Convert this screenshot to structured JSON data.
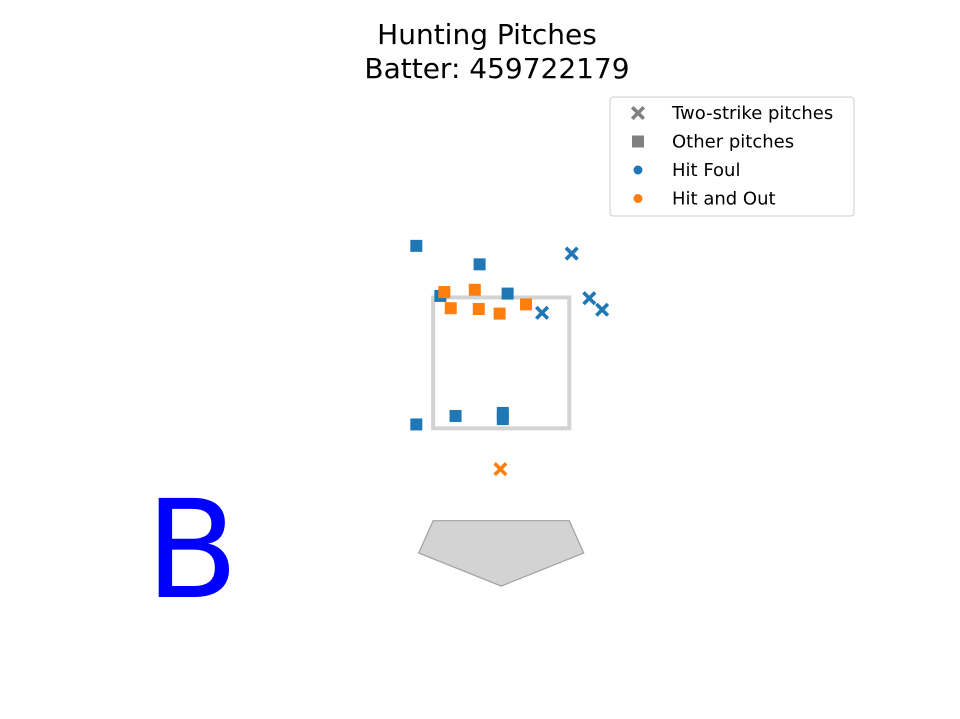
{
  "chart_data": {
    "type": "scatter",
    "title_lines": [
      "Hunting Pitches",
      "Batter: 459722179"
    ],
    "xlabel": "",
    "ylabel": "",
    "grid": false,
    "legend_position": "top-right",
    "legend": [
      {
        "label": "Two-strike pitches",
        "marker": "x",
        "color": "#808080"
      },
      {
        "label": "Other pitches",
        "marker": "square",
        "color": "#808080"
      },
      {
        "label": "Hit Foul",
        "marker": "circle",
        "color": "#1f77b4"
      },
      {
        "label": "Hit and Out",
        "marker": "circle",
        "color": "#ff7f0e"
      }
    ],
    "outcome_colors": {
      "Hit Foul": "#1f77b4",
      "Hit and Out": "#ff7f0e"
    },
    "strike_zone": {
      "x": [
        -0.85,
        0.85
      ],
      "z": [
        1.5,
        3.2
      ]
    },
    "home_plate": {
      "x": [
        -0.85,
        0.85,
        1.03,
        0.0,
        -1.03
      ],
      "z": [
        0.3,
        0.3,
        -0.12,
        -0.55,
        -0.12
      ]
    },
    "axis_ranges": {
      "x": [
        -4.76,
        4.53
      ],
      "z": [
        -1.25,
        5.7
      ]
    },
    "series": [
      {
        "name": "Hit Foul",
        "pitch_group": "Other pitches",
        "x": [
          -1.06,
          -0.76,
          -0.27,
          0.08,
          -0.57,
          0.02,
          0.02,
          -1.06
        ],
        "z": [
          3.87,
          3.22,
          3.63,
          3.25,
          1.66,
          1.7,
          1.62,
          1.55
        ]
      },
      {
        "name": "Hit Foul",
        "pitch_group": "Two-strike pitches",
        "x": [
          0.51,
          0.88,
          1.1,
          1.26
        ],
        "z": [
          3.0,
          3.77,
          3.19,
          3.04
        ]
      },
      {
        "name": "Hit and Out",
        "pitch_group": "Other pitches",
        "x": [
          -0.71,
          -0.33,
          -0.63,
          -0.28,
          -0.02,
          0.31
        ],
        "z": [
          3.27,
          3.3,
          3.06,
          3.05,
          2.99,
          3.11
        ]
      },
      {
        "name": "Hit and Out",
        "pitch_group": "Two-strike pitches",
        "x": [
          -0.01
        ],
        "z": [
          0.97
        ]
      }
    ],
    "batter_side_label": "B",
    "batter_side_color": "#0000ff"
  }
}
